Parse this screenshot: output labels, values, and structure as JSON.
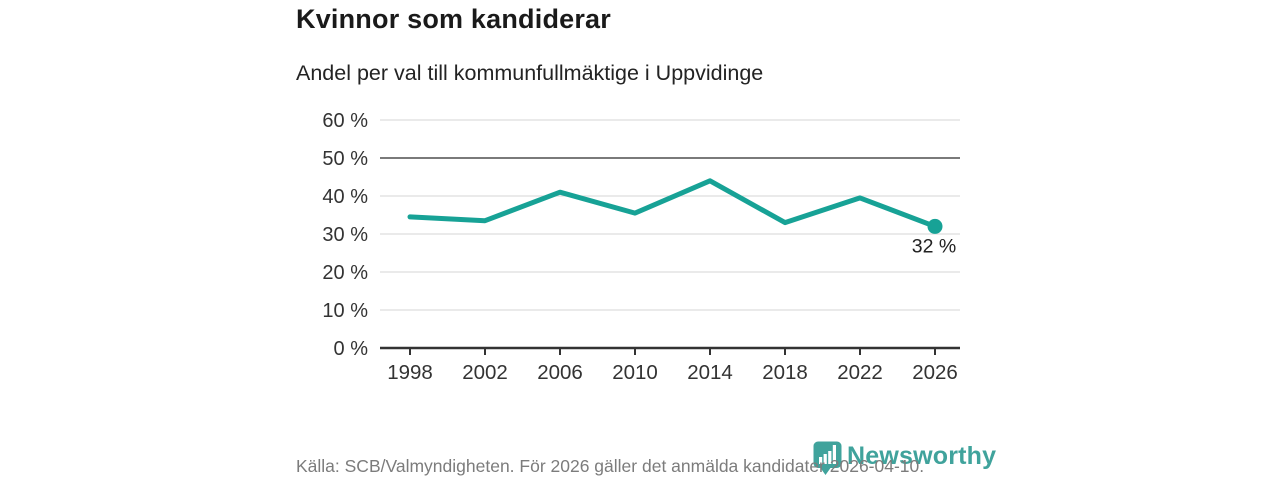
{
  "header": {
    "title": "Kvinnor som kandiderar",
    "subtitle": "Andel per val till kommunfullmäktige i Uppvidinge"
  },
  "footer": {
    "source": "Källa: SCB/Valmyndigheten. För 2026 gäller det anmälda kandidater 2026-04-10.",
    "brand": "Newsworthy"
  },
  "colors": {
    "line": "#17A296",
    "marker": "#17A296",
    "grid_light": "#dddddd",
    "reference_line": "#7a7a7a",
    "axis": "#333333",
    "tick_label": "#333333",
    "value_label": "#222222",
    "brand_teal": "#40A39C",
    "footer_gray": "#7c7c7c"
  },
  "chart_data": {
    "type": "line",
    "title": "Kvinnor som kandiderar",
    "subtitle": "Andel per val till kommunfullmäktige i Uppvidinge",
    "categories": [
      "1998",
      "2002",
      "2006",
      "2010",
      "2014",
      "2018",
      "2022",
      "2026"
    ],
    "values": [
      34.5,
      33.5,
      41,
      35.5,
      44,
      33,
      39.5,
      32
    ],
    "unit": "%",
    "ylim": [
      0,
      60
    ],
    "ytick_step": 10,
    "ytick_labels": [
      "0 %",
      "10 %",
      "20 %",
      "30 %",
      "40 %",
      "50 %",
      "60 %"
    ],
    "reference_line_value": 50,
    "grid": true,
    "legend": "none",
    "end_point_label": "32 %",
    "end_point_marker": true
  }
}
